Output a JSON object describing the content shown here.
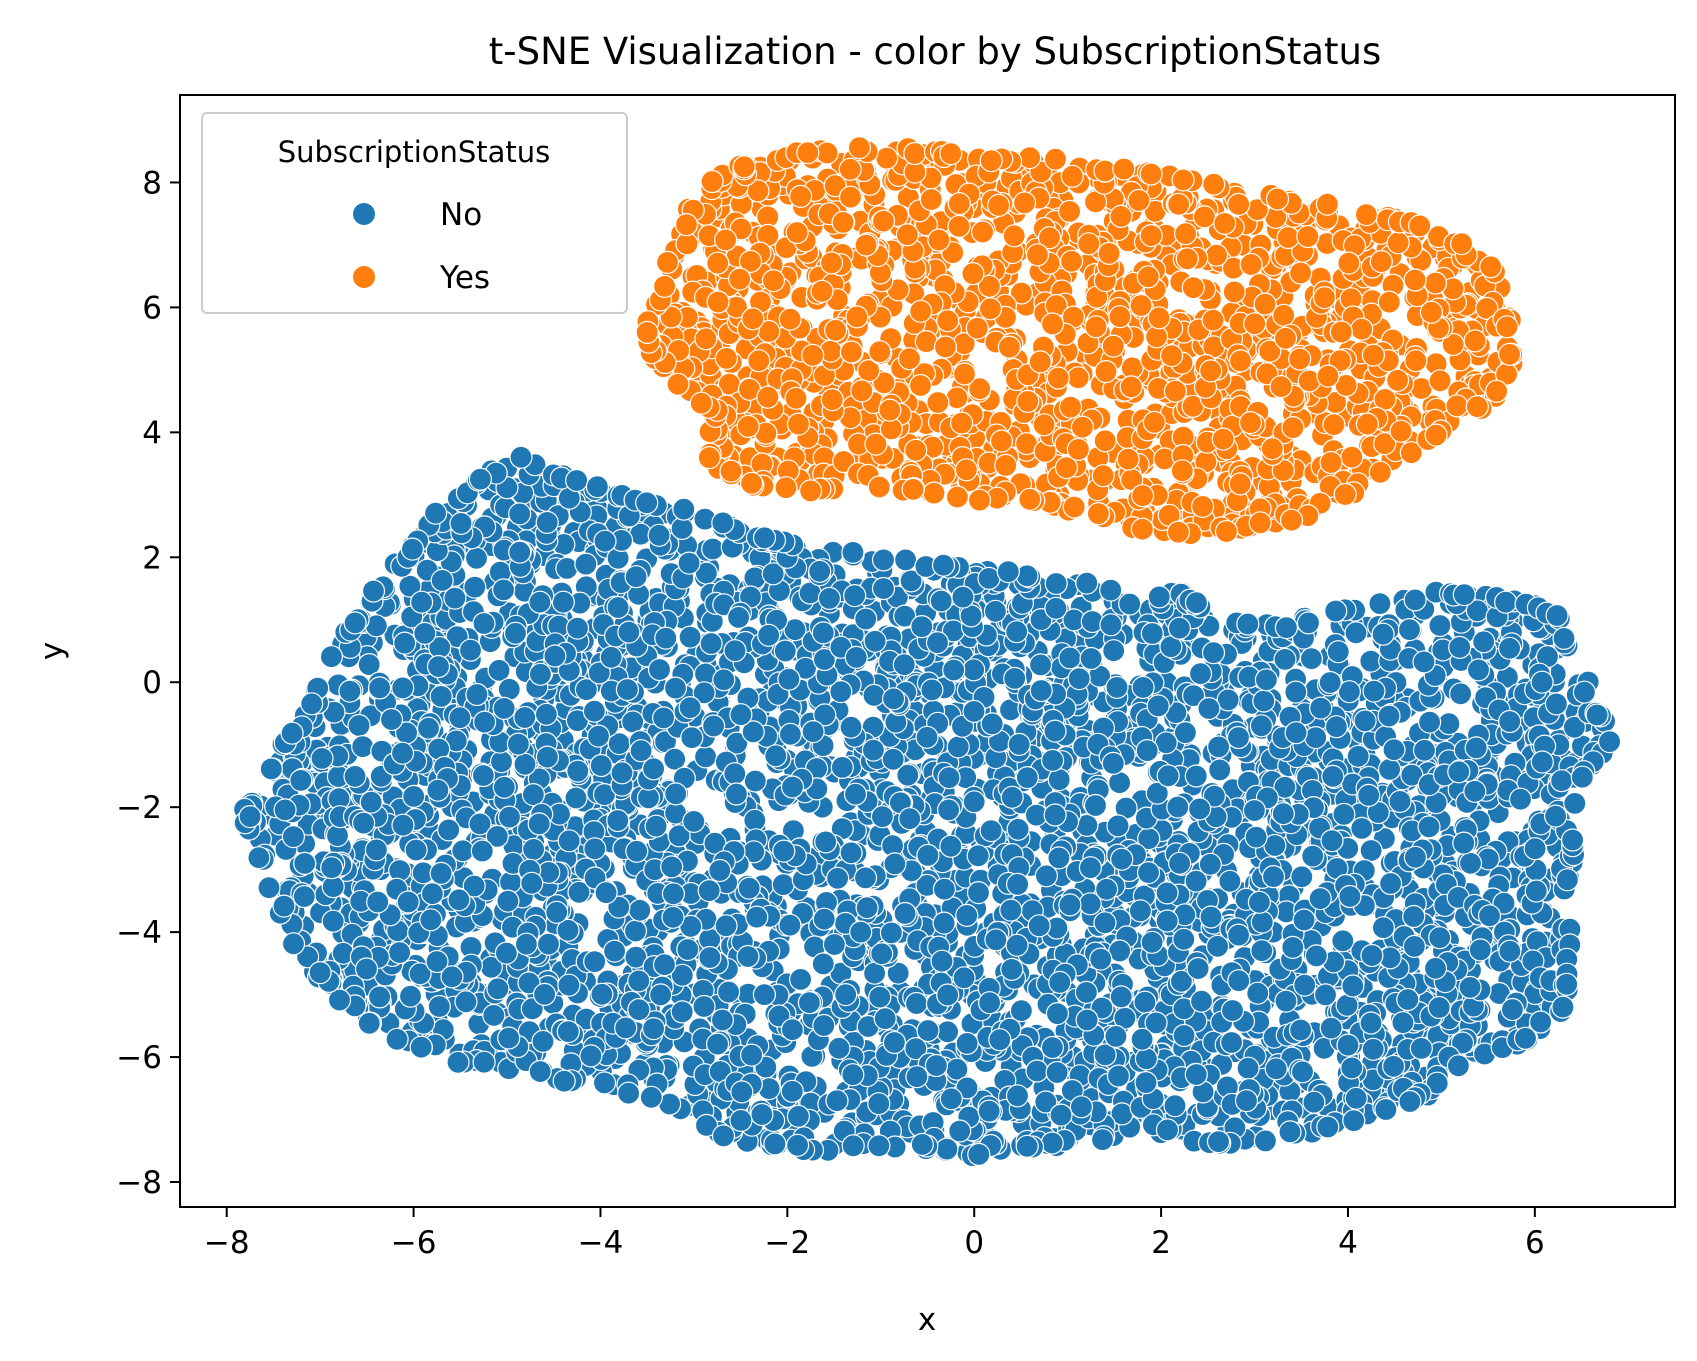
{
  "chart_data": {
    "type": "scatter",
    "title": "t-SNE Visualization - color by SubscriptionStatus",
    "xlabel": "x",
    "ylabel": "y",
    "xlim": [
      -8.5,
      7.5
    ],
    "ylim": [
      -8.4,
      9.4
    ],
    "x_ticks": [
      -8,
      -6,
      -4,
      -2,
      0,
      2,
      4,
      6
    ],
    "y_ticks": [
      -8,
      -6,
      -4,
      -2,
      0,
      2,
      4,
      6,
      8
    ],
    "x_tick_labels": [
      "−8",
      "−6",
      "−4",
      "−2",
      "0",
      "2",
      "4",
      "6"
    ],
    "y_tick_labels": [
      "−8",
      "−6",
      "−4",
      "−2",
      "0",
      "2",
      "4",
      "6",
      "8"
    ],
    "grid": false,
    "legend": {
      "title": "SubscriptionStatus",
      "position": "top-left",
      "entries": [
        {
          "label": "No",
          "color": "#1f77b4"
        },
        {
          "label": "Yes",
          "color": "#ff7f0e"
        }
      ]
    },
    "series": [
      {
        "name": "No",
        "color": "#1f77b4",
        "n_points": 4200,
        "boundary": [
          [
            -7.8,
            -2.15
          ],
          [
            -7.5,
            -1.3
          ],
          [
            -7.1,
            -0.4
          ],
          [
            -6.8,
            0.6
          ],
          [
            -6.5,
            1.2
          ],
          [
            -6.1,
            2.0
          ],
          [
            -5.8,
            2.6
          ],
          [
            -5.3,
            3.2
          ],
          [
            -4.9,
            3.55
          ],
          [
            -4.4,
            3.3
          ],
          [
            -3.7,
            3.0
          ],
          [
            -3.0,
            2.7
          ],
          [
            -2.4,
            2.4
          ],
          [
            -1.6,
            2.1
          ],
          [
            -0.6,
            1.9
          ],
          [
            0.3,
            1.8
          ],
          [
            1.0,
            1.6
          ],
          [
            1.6,
            1.4
          ],
          [
            2.2,
            1.4
          ],
          [
            2.7,
            1.0
          ],
          [
            3.3,
            0.9
          ],
          [
            3.8,
            1.1
          ],
          [
            4.4,
            1.3
          ],
          [
            5.2,
            1.45
          ],
          [
            5.8,
            1.3
          ],
          [
            6.2,
            1.1
          ],
          [
            6.5,
            0.3
          ],
          [
            6.8,
            -0.95
          ],
          [
            6.5,
            -1.5
          ],
          [
            6.4,
            -3.0
          ],
          [
            6.3,
            -4.6
          ],
          [
            6.3,
            -5.2
          ],
          [
            5.9,
            -5.7
          ],
          [
            5.3,
            -6.0
          ],
          [
            4.8,
            -6.6
          ],
          [
            4.2,
            -7.0
          ],
          [
            3.5,
            -7.2
          ],
          [
            2.7,
            -7.4
          ],
          [
            1.8,
            -7.3
          ],
          [
            0.8,
            -7.4
          ],
          [
            -0.1,
            -7.55
          ],
          [
            -0.7,
            -7.4
          ],
          [
            -1.6,
            -7.45
          ],
          [
            -2.4,
            -7.4
          ],
          [
            -3.2,
            -6.8
          ],
          [
            -4.1,
            -6.4
          ],
          [
            -5.0,
            -6.2
          ],
          [
            -6.0,
            -5.9
          ],
          [
            -6.8,
            -5.1
          ],
          [
            -7.2,
            -4.4
          ],
          [
            -7.5,
            -3.3
          ],
          [
            -7.7,
            -2.5
          ]
        ],
        "outliers": [
          [
            -7.75,
            -2.15
          ],
          [
            6.8,
            -0.95
          ],
          [
            6.3,
            -5.2
          ],
          [
            5.9,
            -5.7
          ],
          [
            -4.85,
            3.6
          ]
        ]
      },
      {
        "name": "Yes",
        "color": "#ff7f0e",
        "n_points": 1500,
        "boundary": [
          [
            -3.5,
            5.6
          ],
          [
            -3.3,
            6.6
          ],
          [
            -3.0,
            7.7
          ],
          [
            -2.6,
            8.2
          ],
          [
            -2.0,
            8.45
          ],
          [
            -1.3,
            8.55
          ],
          [
            -0.6,
            8.5
          ],
          [
            0.0,
            8.4
          ],
          [
            0.8,
            8.35
          ],
          [
            1.5,
            8.2
          ],
          [
            2.2,
            8.1
          ],
          [
            3.0,
            7.8
          ],
          [
            3.8,
            7.6
          ],
          [
            4.6,
            7.4
          ],
          [
            5.2,
            7.0
          ],
          [
            5.6,
            6.5
          ],
          [
            5.75,
            5.5
          ],
          [
            5.7,
            4.7
          ],
          [
            5.2,
            4.2
          ],
          [
            4.6,
            3.6
          ],
          [
            4.0,
            3.0
          ],
          [
            3.4,
            2.6
          ],
          [
            2.8,
            2.45
          ],
          [
            2.0,
            2.4
          ],
          [
            1.3,
            2.7
          ],
          [
            0.6,
            2.9
          ],
          [
            -0.3,
            3.0
          ],
          [
            -1.0,
            3.1
          ],
          [
            -1.7,
            3.1
          ],
          [
            -2.4,
            3.2
          ],
          [
            -2.9,
            3.5
          ],
          [
            -2.8,
            4.0
          ],
          [
            -2.7,
            4.3
          ],
          [
            -3.1,
            4.7
          ],
          [
            -3.4,
            5.2
          ]
        ],
        "outliers": [
          [
            1.8,
            2.45
          ],
          [
            -3.5,
            5.6
          ]
        ]
      }
    ]
  }
}
